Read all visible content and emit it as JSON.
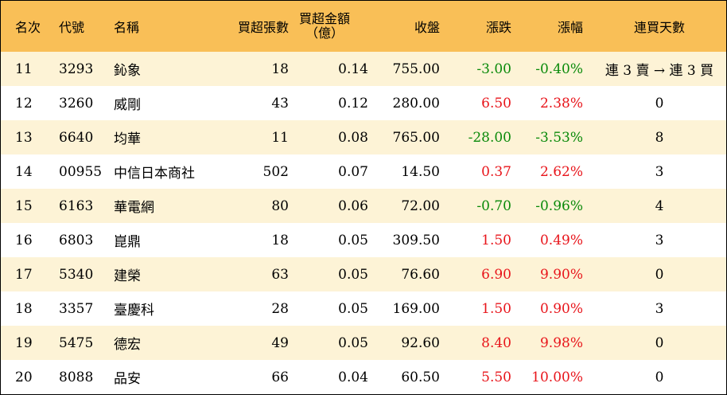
{
  "header": {
    "rank": "名次",
    "code": "代號",
    "name": "名稱",
    "volume": "買超張數",
    "amount_line1": "買超金額",
    "amount_line2": "（億）",
    "close": "收盤",
    "change": "漲跌",
    "pct": "漲幅",
    "days": "連買天數"
  },
  "rows": [
    {
      "rank": "11",
      "code": "3293",
      "name": "鈊象",
      "volume": "18",
      "amount": "0.14",
      "close": "755.00",
      "change": "-3.00",
      "pct": "-0.40%",
      "days": "連 3 賣 → 連 3 買",
      "dir": "down"
    },
    {
      "rank": "12",
      "code": "3260",
      "name": "威剛",
      "volume": "43",
      "amount": "0.12",
      "close": "280.00",
      "change": "6.50",
      "pct": "2.38%",
      "days": "0",
      "dir": "up"
    },
    {
      "rank": "13",
      "code": "6640",
      "name": "均華",
      "volume": "11",
      "amount": "0.08",
      "close": "765.00",
      "change": "-28.00",
      "pct": "-3.53%",
      "days": "8",
      "dir": "down"
    },
    {
      "rank": "14",
      "code": "00955",
      "name": "中信日本商社",
      "volume": "502",
      "amount": "0.07",
      "close": "14.50",
      "change": "0.37",
      "pct": "2.62%",
      "days": "3",
      "dir": "up"
    },
    {
      "rank": "15",
      "code": "6163",
      "name": "華電網",
      "volume": "80",
      "amount": "0.06",
      "close": "72.00",
      "change": "-0.70",
      "pct": "-0.96%",
      "days": "4",
      "dir": "down"
    },
    {
      "rank": "16",
      "code": "6803",
      "name": "崑鼎",
      "volume": "18",
      "amount": "0.05",
      "close": "309.50",
      "change": "1.50",
      "pct": "0.49%",
      "days": "3",
      "dir": "up"
    },
    {
      "rank": "17",
      "code": "5340",
      "name": "建榮",
      "volume": "63",
      "amount": "0.05",
      "close": "76.60",
      "change": "6.90",
      "pct": "9.90%",
      "days": "0",
      "dir": "up"
    },
    {
      "rank": "18",
      "code": "3357",
      "name": "臺慶科",
      "volume": "28",
      "amount": "0.05",
      "close": "169.00",
      "change": "1.50",
      "pct": "0.90%",
      "days": "3",
      "dir": "up"
    },
    {
      "rank": "19",
      "code": "5475",
      "name": "德宏",
      "volume": "49",
      "amount": "0.05",
      "close": "92.60",
      "change": "8.40",
      "pct": "9.98%",
      "days": "0",
      "dir": "up"
    },
    {
      "rank": "20",
      "code": "8088",
      "name": "品安",
      "volume": "66",
      "amount": "0.04",
      "close": "60.50",
      "change": "5.50",
      "pct": "10.00%",
      "days": "0",
      "dir": "up"
    }
  ]
}
